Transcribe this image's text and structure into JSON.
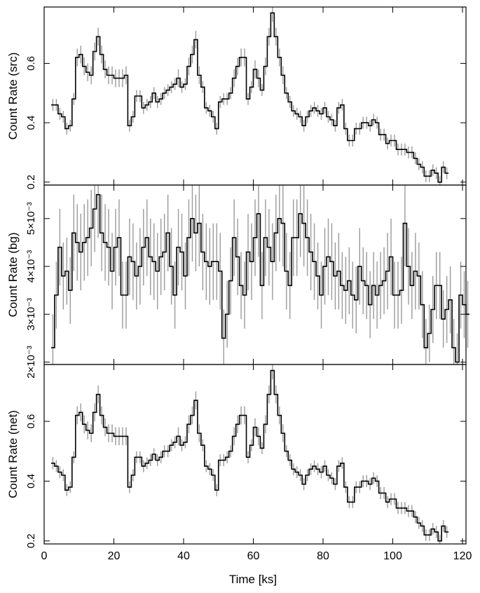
{
  "chart_data": [
    {
      "type": "line",
      "ylabel": "Count Rate (src)",
      "xlim": [
        0,
        121
      ],
      "ylim": [
        0.19,
        0.79
      ],
      "yticks": [
        {
          "v": 0.2,
          "label": "0.2"
        },
        {
          "v": 0.4,
          "label": "0.4"
        },
        {
          "v": 0.6,
          "label": "0.6"
        }
      ],
      "bin_width": 1,
      "x_start": 2,
      "series": [
        {
          "values": [
            0.46,
            0.46,
            0.43,
            0.42,
            0.38,
            0.39,
            0.48,
            0.62,
            0.63,
            0.59,
            0.57,
            0.56,
            0.64,
            0.69,
            0.63,
            0.58,
            0.56,
            0.56,
            0.55,
            0.55,
            0.55,
            0.56,
            0.39,
            0.42,
            0.49,
            0.49,
            0.45,
            0.46,
            0.47,
            0.5,
            0.47,
            0.48,
            0.5,
            0.51,
            0.52,
            0.53,
            0.55,
            0.52,
            0.53,
            0.59,
            0.63,
            0.68,
            0.56,
            0.52,
            0.45,
            0.44,
            0.42,
            0.38,
            0.47,
            0.48,
            0.48,
            0.5,
            0.55,
            0.59,
            0.62,
            0.62,
            0.48,
            0.52,
            0.58,
            0.55,
            0.51,
            0.59,
            0.69,
            0.77,
            0.69,
            0.62,
            0.56,
            0.5,
            0.47,
            0.44,
            0.43,
            0.42,
            0.39,
            0.42,
            0.44,
            0.45,
            0.44,
            0.43,
            0.45,
            0.42,
            0.41,
            0.39,
            0.45,
            0.46,
            0.38,
            0.34,
            0.34,
            0.38,
            0.38,
            0.4,
            0.4,
            0.39,
            0.41,
            0.4,
            0.36,
            0.36,
            0.33,
            0.34,
            0.34,
            0.31,
            0.31,
            0.31,
            0.3,
            0.3,
            0.28,
            0.26,
            0.25,
            0.22,
            0.22,
            0.24,
            0.23,
            0.2,
            0.25,
            0.23
          ],
          "errors": [
            0.02,
            0.02,
            0.02,
            0.02,
            0.02,
            0.02,
            0.02,
            0.03,
            0.03,
            0.03,
            0.03,
            0.03,
            0.03,
            0.03,
            0.03,
            0.03,
            0.03,
            0.03,
            0.03,
            0.03,
            0.03,
            0.03,
            0.02,
            0.02,
            0.02,
            0.02,
            0.02,
            0.02,
            0.02,
            0.02,
            0.02,
            0.02,
            0.02,
            0.02,
            0.02,
            0.02,
            0.03,
            0.02,
            0.02,
            0.03,
            0.03,
            0.03,
            0.03,
            0.02,
            0.02,
            0.02,
            0.02,
            0.02,
            0.02,
            0.02,
            0.02,
            0.02,
            0.03,
            0.03,
            0.03,
            0.03,
            0.02,
            0.02,
            0.03,
            0.03,
            0.02,
            0.03,
            0.03,
            0.03,
            0.03,
            0.03,
            0.03,
            0.02,
            0.02,
            0.02,
            0.02,
            0.02,
            0.02,
            0.02,
            0.02,
            0.02,
            0.02,
            0.02,
            0.02,
            0.02,
            0.02,
            0.02,
            0.02,
            0.02,
            0.02,
            0.02,
            0.02,
            0.02,
            0.02,
            0.02,
            0.02,
            0.02,
            0.02,
            0.02,
            0.02,
            0.02,
            0.02,
            0.02,
            0.02,
            0.02,
            0.02,
            0.02,
            0.02,
            0.02,
            0.02,
            0.02,
            0.02,
            0.02,
            0.02,
            0.02,
            0.02,
            0.02,
            0.02,
            0.02
          ]
        }
      ]
    },
    {
      "type": "line",
      "ylabel": "Count Rate (bg)",
      "xlim": [
        0,
        121
      ],
      "ylim": [
        0.00195,
        0.0057
      ],
      "yticks": [
        {
          "v": 0.002,
          "label": "2×10⁻³"
        },
        {
          "v": 0.003,
          "label": "3×10⁻³"
        },
        {
          "v": 0.004,
          "label": "4×10⁻³"
        },
        {
          "v": 0.005,
          "label": "5×10⁻³"
        }
      ],
      "bin_width": 1,
      "x_start": 2,
      "series": [
        {
          "values": [
            0.0023,
            0.0034,
            0.0044,
            0.0038,
            0.0039,
            0.0035,
            0.0047,
            0.0045,
            0.0043,
            0.0045,
            0.0046,
            0.0048,
            0.0052,
            0.0055,
            0.0047,
            0.0045,
            0.0044,
            0.0039,
            0.0044,
            0.0046,
            0.0034,
            0.0034,
            0.0042,
            0.0041,
            0.0038,
            0.004,
            0.0044,
            0.0046,
            0.0042,
            0.0041,
            0.0039,
            0.0042,
            0.0043,
            0.0047,
            0.004,
            0.0034,
            0.0044,
            0.0043,
            0.0038,
            0.0046,
            0.005,
            0.0047,
            0.0049,
            0.0043,
            0.0041,
            0.004,
            0.0041,
            0.0041,
            0.0039,
            0.0025,
            0.003,
            0.0037,
            0.0046,
            0.0042,
            0.0036,
            0.0034,
            0.0043,
            0.0041,
            0.0046,
            0.0051,
            0.0036,
            0.0046,
            0.0044,
            0.0041,
            0.0047,
            0.005,
            0.0049,
            0.0039,
            0.0036,
            0.0046,
            0.0046,
            0.0051,
            0.0049,
            0.0046,
            0.0043,
            0.0041,
            0.0038,
            0.0034,
            0.004,
            0.0042,
            0.0041,
            0.0038,
            0.0039,
            0.0036,
            0.0035,
            0.0037,
            0.0034,
            0.0033,
            0.004,
            0.0037,
            0.0036,
            0.0032,
            0.0036,
            0.0034,
            0.0036,
            0.0037,
            0.0039,
            0.0042,
            0.0034,
            0.0034,
            0.0035,
            0.0049,
            0.004,
            0.0036,
            0.0039,
            0.0038,
            0.0032,
            0.0023,
            0.0026,
            0.0031,
            0.0036,
            0.0036,
            0.0029,
            0.0031,
            0.0033,
            0.0023,
            0.002,
            0.0034,
            0.0032,
            0.003
          ],
          "errors": [
            0.0007,
            0.0007,
            0.0008,
            0.0007,
            0.0007,
            0.0007,
            0.0008,
            0.0008,
            0.0008,
            0.0008,
            0.0008,
            0.0008,
            0.0009,
            0.0009,
            0.0008,
            0.0008,
            0.0008,
            0.0008,
            0.0008,
            0.0008,
            0.0007,
            0.0007,
            0.0008,
            0.0008,
            0.0007,
            0.0008,
            0.0008,
            0.0008,
            0.0008,
            0.0008,
            0.0008,
            0.0008,
            0.0008,
            0.0008,
            0.0008,
            0.0007,
            0.0008,
            0.0008,
            0.0007,
            0.0008,
            0.0009,
            0.0008,
            0.0009,
            0.0008,
            0.0008,
            0.0008,
            0.0008,
            0.0008,
            0.0008,
            0.0006,
            0.0007,
            0.0007,
            0.0008,
            0.0008,
            0.0007,
            0.0007,
            0.0008,
            0.0008,
            0.0008,
            0.0009,
            0.0007,
            0.0008,
            0.0008,
            0.0008,
            0.0008,
            0.0009,
            0.0009,
            0.0008,
            0.0007,
            0.0008,
            0.0008,
            0.0009,
            0.0009,
            0.0008,
            0.0008,
            0.0008,
            0.0007,
            0.0007,
            0.0008,
            0.0008,
            0.0008,
            0.0007,
            0.0008,
            0.0007,
            0.0007,
            0.0007,
            0.0007,
            0.0007,
            0.0008,
            0.0007,
            0.0007,
            0.0007,
            0.0007,
            0.0007,
            0.0007,
            0.0007,
            0.0008,
            0.0008,
            0.0007,
            0.0007,
            0.0007,
            0.0009,
            0.0008,
            0.0007,
            0.0008,
            0.0007,
            0.0007,
            0.0006,
            0.0006,
            0.0007,
            0.0007,
            0.0007,
            0.0006,
            0.0007,
            0.0007,
            0.0006,
            0.0006,
            0.0007,
            0.0007,
            0.0007
          ]
        }
      ]
    },
    {
      "type": "line",
      "ylabel": "Count Rate (net)",
      "xlabel": "Time [ks]",
      "xlim": [
        0,
        121
      ],
      "ylim": [
        0.19,
        0.79
      ],
      "xticks": [
        {
          "v": 0,
          "label": "0"
        },
        {
          "v": 20,
          "label": "20"
        },
        {
          "v": 40,
          "label": "40"
        },
        {
          "v": 60,
          "label": "60"
        },
        {
          "v": 80,
          "label": "80"
        },
        {
          "v": 100,
          "label": "100"
        },
        {
          "v": 120,
          "label": "120"
        }
      ],
      "yticks": [
        {
          "v": 0.2,
          "label": "0.2"
        },
        {
          "v": 0.4,
          "label": "0.4"
        },
        {
          "v": 0.6,
          "label": "0.6"
        }
      ],
      "bin_width": 1,
      "x_start": 2,
      "series": [
        {
          "values": [
            0.46,
            0.45,
            0.43,
            0.42,
            0.37,
            0.38,
            0.48,
            0.62,
            0.63,
            0.59,
            0.57,
            0.56,
            0.63,
            0.69,
            0.62,
            0.58,
            0.56,
            0.56,
            0.55,
            0.55,
            0.55,
            0.55,
            0.38,
            0.42,
            0.48,
            0.48,
            0.45,
            0.46,
            0.47,
            0.49,
            0.47,
            0.48,
            0.5,
            0.5,
            0.52,
            0.53,
            0.55,
            0.52,
            0.53,
            0.59,
            0.62,
            0.67,
            0.56,
            0.52,
            0.45,
            0.44,
            0.42,
            0.37,
            0.47,
            0.47,
            0.48,
            0.5,
            0.55,
            0.59,
            0.62,
            0.62,
            0.48,
            0.52,
            0.58,
            0.55,
            0.51,
            0.59,
            0.69,
            0.77,
            0.69,
            0.62,
            0.56,
            0.5,
            0.47,
            0.44,
            0.43,
            0.42,
            0.39,
            0.42,
            0.44,
            0.45,
            0.44,
            0.43,
            0.45,
            0.42,
            0.41,
            0.39,
            0.45,
            0.46,
            0.38,
            0.33,
            0.33,
            0.38,
            0.38,
            0.4,
            0.4,
            0.39,
            0.41,
            0.4,
            0.36,
            0.36,
            0.33,
            0.34,
            0.34,
            0.31,
            0.31,
            0.31,
            0.3,
            0.3,
            0.28,
            0.26,
            0.25,
            0.22,
            0.22,
            0.24,
            0.23,
            0.2,
            0.25,
            0.23
          ],
          "errors": [
            0.02,
            0.02,
            0.02,
            0.02,
            0.02,
            0.02,
            0.02,
            0.03,
            0.03,
            0.03,
            0.03,
            0.03,
            0.03,
            0.03,
            0.03,
            0.03,
            0.03,
            0.03,
            0.03,
            0.03,
            0.03,
            0.03,
            0.02,
            0.02,
            0.02,
            0.02,
            0.02,
            0.02,
            0.02,
            0.02,
            0.02,
            0.02,
            0.02,
            0.02,
            0.02,
            0.02,
            0.03,
            0.02,
            0.02,
            0.03,
            0.03,
            0.03,
            0.03,
            0.02,
            0.02,
            0.02,
            0.02,
            0.02,
            0.02,
            0.02,
            0.02,
            0.02,
            0.03,
            0.03,
            0.03,
            0.03,
            0.02,
            0.02,
            0.03,
            0.03,
            0.02,
            0.03,
            0.03,
            0.03,
            0.03,
            0.03,
            0.03,
            0.02,
            0.02,
            0.02,
            0.02,
            0.02,
            0.02,
            0.02,
            0.02,
            0.02,
            0.02,
            0.02,
            0.02,
            0.02,
            0.02,
            0.02,
            0.02,
            0.02,
            0.02,
            0.02,
            0.02,
            0.02,
            0.02,
            0.02,
            0.02,
            0.02,
            0.02,
            0.02,
            0.02,
            0.02,
            0.02,
            0.02,
            0.02,
            0.02,
            0.02,
            0.02,
            0.02,
            0.02,
            0.02,
            0.02,
            0.02,
            0.02,
            0.02,
            0.02,
            0.02,
            0.02,
            0.02,
            0.02
          ]
        }
      ]
    }
  ]
}
